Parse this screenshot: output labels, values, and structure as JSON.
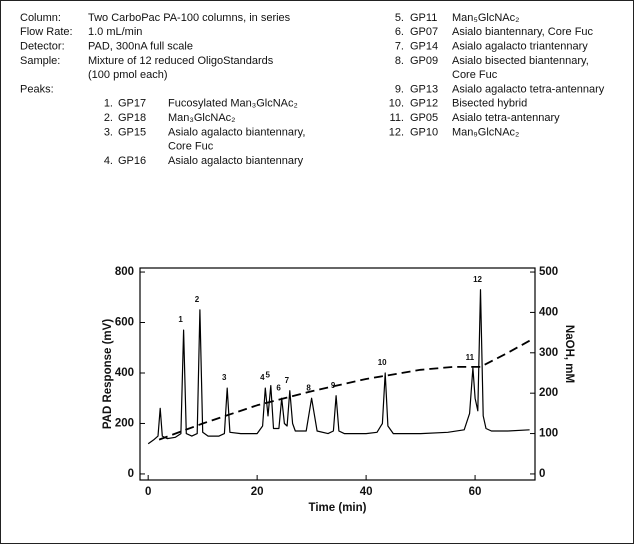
{
  "conditions": [
    {
      "label": "Column:",
      "lines": [
        "Two CarboPac PA-100 columns, in series"
      ]
    },
    {
      "label": "Flow Rate:",
      "lines": [
        "1.0 mL/min"
      ]
    },
    {
      "label": "Detector:",
      "lines": [
        "PAD, 300nA full scale"
      ]
    },
    {
      "label": "Sample:",
      "lines": [
        "Mixture of 12 reduced OligoStandards",
        "(100 pmol each)"
      ]
    },
    {
      "label": "Peaks:",
      "lines": []
    }
  ],
  "peaks": [
    {
      "number": "1.",
      "code": "GP17",
      "name": [
        "Fucosylated Man₃GlcNAc₂"
      ]
    },
    {
      "number": "2.",
      "code": "GP18",
      "name": [
        "Man₃GlcNAc₂"
      ]
    },
    {
      "number": "3.",
      "code": "GP15",
      "name": [
        "Asialo agalacto biantennary,",
        "Core Fuc"
      ]
    },
    {
      "number": "4.",
      "code": "GP16",
      "name": [
        "Asialo agalacto biantennary"
      ]
    },
    {
      "number": "5.",
      "code": "GP11",
      "name": [
        "Man₅GlcNAc₂"
      ]
    },
    {
      "number": "6.",
      "code": "GP07",
      "name": [
        "Asialo biantennary, Core Fuc"
      ]
    },
    {
      "number": "7.",
      "code": "GP14",
      "name": [
        "Asialo agalacto triantennary"
      ]
    },
    {
      "number": "8.",
      "code": "GP09",
      "name": [
        "Asialo bisected biantennary,",
        "Core Fuc"
      ]
    },
    {
      "number": "9.",
      "code": "GP13",
      "name": [
        "Asialo agalacto tetra-antennary"
      ]
    },
    {
      "number": "10.",
      "code": "GP12",
      "name": [
        "Bisected hybrid"
      ]
    },
    {
      "number": "11.",
      "code": "GP05",
      "name": [
        "Asialo tetra-antennary"
      ]
    },
    {
      "number": "12.",
      "code": "GP10",
      "name": [
        "Man₉GlcNAc₂"
      ]
    }
  ],
  "chart_data": {
    "type": "line",
    "xlabel": "Time (min)",
    "ylabel": "PAD Response (mV)",
    "y2label": "NaOH, mM",
    "xlim": [
      -1.5,
      71
    ],
    "ylim": [
      -24,
      816
    ],
    "y2lim": [
      -15,
      510
    ],
    "xticks": [
      0,
      20,
      40,
      60
    ],
    "yticks": [
      0,
      200,
      400,
      600,
      800
    ],
    "y2ticks": [
      0,
      100,
      200,
      300,
      400,
      500
    ],
    "series": [
      {
        "color": "#000000",
        "x": [
          0,
          1,
          1.8,
          2.2,
          2.6,
          3.5,
          5,
          6,
          6.5,
          7,
          8,
          9,
          9.5,
          10,
          11,
          13,
          14,
          14.5,
          15,
          17,
          20,
          21,
          21.5,
          22,
          22.5,
          23,
          24,
          24.5,
          25,
          25.5,
          26,
          26.5,
          27,
          29,
          30,
          31,
          33,
          34,
          34.5,
          35,
          36,
          40,
          42,
          43,
          43.5,
          44,
          45,
          50,
          55,
          58,
          59,
          59.6,
          60,
          60.5,
          61,
          61.5,
          62,
          63,
          66,
          70
        ],
        "values": [
          120,
          135,
          150,
          260,
          150,
          140,
          145,
          160,
          570,
          160,
          150,
          160,
          650,
          165,
          150,
          150,
          160,
          340,
          165,
          160,
          160,
          190,
          340,
          230,
          350,
          180,
          180,
          300,
          200,
          190,
          330,
          200,
          170,
          170,
          300,
          170,
          160,
          170,
          310,
          170,
          160,
          160,
          165,
          200,
          400,
          190,
          160,
          160,
          165,
          175,
          240,
          420,
          300,
          250,
          730,
          230,
          180,
          170,
          170,
          175
        ]
      },
      {
        "color": "#000000",
        "axis": "y2",
        "dashed": true,
        "x": [
          2,
          10,
          20,
          30,
          40,
          50,
          56,
          61,
          66,
          70
        ],
        "values": [
          85,
          125,
          170,
          205,
          235,
          258,
          265,
          265,
          300,
          330
        ]
      }
    ],
    "annotations": [
      {
        "text": "1",
        "x": 6.5
      },
      {
        "text": "2",
        "x": 9.5
      },
      {
        "text": "3",
        "x": 14.5
      },
      {
        "text": "4",
        "x": 21.5
      },
      {
        "text": "5",
        "x": 22.5
      },
      {
        "text": "6",
        "x": 24.5
      },
      {
        "text": "7",
        "x": 26
      },
      {
        "text": "8",
        "x": 30
      },
      {
        "text": "9",
        "x": 34.5
      },
      {
        "text": "10",
        "x": 43.5
      },
      {
        "text": "11",
        "x": 59.6
      },
      {
        "text": "12",
        "x": 61
      }
    ]
  }
}
